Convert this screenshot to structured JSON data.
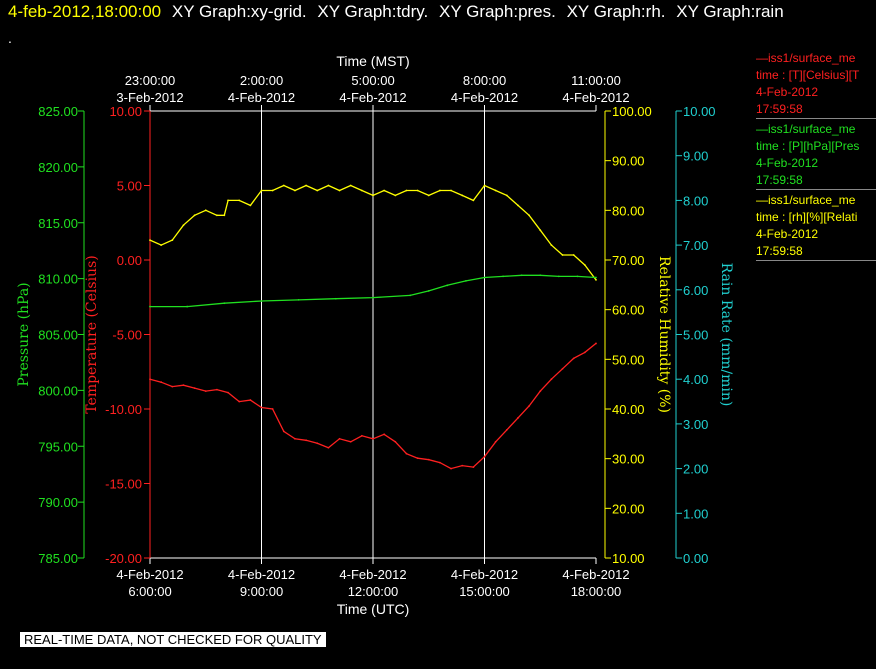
{
  "header": {
    "timestamp": "4-feb-2012,18:00:00",
    "graphs": [
      "XY Graph:xy-grid.",
      "XY Graph:tdry.",
      "XY Graph:pres.",
      "XY Graph:rh.",
      "XY Graph:rain"
    ],
    "dot": "."
  },
  "footer": {
    "quality_note": "REAL-TIME DATA, NOT CHECKED FOR QUALITY"
  },
  "legend": [
    {
      "color": "#ff2020",
      "name": "—iss1/surface_me",
      "line2": "time : [T][Celsius][T",
      "date": "4-Feb-2012",
      "time": "17:59:58"
    },
    {
      "color": "#20e020",
      "name": "—iss1/surface_me",
      "line2": "time : [P][hPa][Pres",
      "date": "4-Feb-2012",
      "time": "17:59:58"
    },
    {
      "color": "#ffff00",
      "name": "—iss1/surface_me",
      "line2": "time : [rh][%][Relati",
      "date": "4-Feb-2012",
      "time": "17:59:58"
    }
  ],
  "chart_data": {
    "type": "line",
    "top_axis": {
      "label": "Time (MST)",
      "ticks": [
        {
          "t": 0,
          "l1": "23:00:00",
          "l2": "3-Feb-2012"
        },
        {
          "t": 3,
          "l1": "2:00:00",
          "l2": "4-Feb-2012"
        },
        {
          "t": 6,
          "l1": "5:00:00",
          "l2": "4-Feb-2012"
        },
        {
          "t": 9,
          "l1": "8:00:00",
          "l2": "4-Feb-2012"
        },
        {
          "t": 12,
          "l1": "11:00:00",
          "l2": "4-Feb-2012"
        }
      ]
    },
    "bottom_axis": {
      "label": "Time (UTC)",
      "ticks": [
        {
          "t": 0,
          "l1": "4-Feb-2012",
          "l2": "6:00:00"
        },
        {
          "t": 3,
          "l1": "4-Feb-2012",
          "l2": "9:00:00"
        },
        {
          "t": 6,
          "l1": "4-Feb-2012",
          "l2": "12:00:00"
        },
        {
          "t": 9,
          "l1": "4-Feb-2012",
          "l2": "15:00:00"
        },
        {
          "t": 12,
          "l1": "4-Feb-2012",
          "l2": "18:00:00"
        }
      ]
    },
    "xlim": [
      0,
      12
    ],
    "grid": true,
    "y_axes": {
      "pressure": {
        "label": "Pressure (hPa)",
        "color": "#20e020",
        "min": 785,
        "max": 825,
        "step": 5,
        "decimals": 2
      },
      "temperature": {
        "label": "Temperature (Celsius)",
        "color": "#ff2020",
        "min": -20,
        "max": 10,
        "step": 5,
        "decimals": 2
      },
      "humidity": {
        "label": "Relative Humidity (%)",
        "color": "#ffff00",
        "min": 10,
        "max": 100,
        "step": 10,
        "decimals": 2
      },
      "rain": {
        "label": "Rain Rate (mm/min)",
        "color": "#20d0d0",
        "min": 0,
        "max": 10,
        "step": 1,
        "decimals": 2
      }
    },
    "series": [
      {
        "axis": "humidity",
        "color": "#ffff00",
        "x": [
          0,
          0.3,
          0.6,
          0.9,
          1.2,
          1.5,
          1.8,
          2.0,
          2.1,
          2.4,
          2.7,
          3.0,
          3.3,
          3.6,
          3.9,
          4.2,
          4.5,
          4.8,
          5.1,
          5.4,
          5.7,
          6.0,
          6.3,
          6.6,
          6.9,
          7.2,
          7.5,
          7.8,
          8.1,
          8.4,
          8.7,
          9.0,
          9.3,
          9.6,
          9.9,
          10.2,
          10.5,
          10.8,
          11.1,
          11.4,
          11.7,
          12.0
        ],
        "y": [
          74,
          73,
          74,
          77,
          79,
          80,
          79,
          79,
          82,
          82,
          81,
          84,
          84,
          85,
          84,
          85,
          84,
          85,
          84,
          85,
          84,
          83,
          84,
          83,
          84,
          84,
          83,
          84,
          84,
          83,
          82,
          85,
          84,
          83,
          81,
          79,
          76,
          73,
          71,
          71,
          69,
          66
        ]
      },
      {
        "axis": "pressure",
        "color": "#20e020",
        "x": [
          0,
          1,
          2,
          3,
          4,
          5,
          6,
          7,
          7.5,
          8,
          8.5,
          9,
          9.5,
          10,
          10.5,
          11,
          11.5,
          12
        ],
        "y": [
          807.5,
          807.5,
          807.8,
          808.0,
          808.1,
          808.2,
          808.3,
          808.5,
          808.9,
          809.4,
          809.8,
          810.1,
          810.2,
          810.3,
          810.3,
          810.2,
          810.2,
          810.1
        ]
      },
      {
        "axis": "temperature",
        "color": "#ff2020",
        "x": [
          0,
          0.3,
          0.6,
          0.9,
          1.2,
          1.5,
          1.8,
          2.1,
          2.4,
          2.7,
          3.0,
          3.3,
          3.6,
          3.9,
          4.2,
          4.5,
          4.8,
          5.1,
          5.4,
          5.7,
          6.0,
          6.3,
          6.6,
          6.9,
          7.2,
          7.5,
          7.8,
          8.1,
          8.4,
          8.7,
          9.0,
          9.3,
          9.6,
          9.9,
          10.2,
          10.5,
          10.8,
          11.1,
          11.4,
          11.7,
          12.0
        ],
        "y": [
          -8.0,
          -8.2,
          -8.5,
          -8.4,
          -8.6,
          -8.8,
          -8.7,
          -8.9,
          -9.5,
          -9.4,
          -9.9,
          -10.0,
          -11.5,
          -12.0,
          -12.1,
          -12.3,
          -12.6,
          -12.0,
          -12.2,
          -11.8,
          -12.0,
          -11.7,
          -12.2,
          -13.0,
          -13.3,
          -13.4,
          -13.6,
          -14.0,
          -13.8,
          -13.9,
          -13.2,
          -12.2,
          -11.4,
          -10.6,
          -9.8,
          -8.8,
          -8.0,
          -7.3,
          -6.6,
          -6.2,
          -5.6
        ]
      }
    ]
  }
}
